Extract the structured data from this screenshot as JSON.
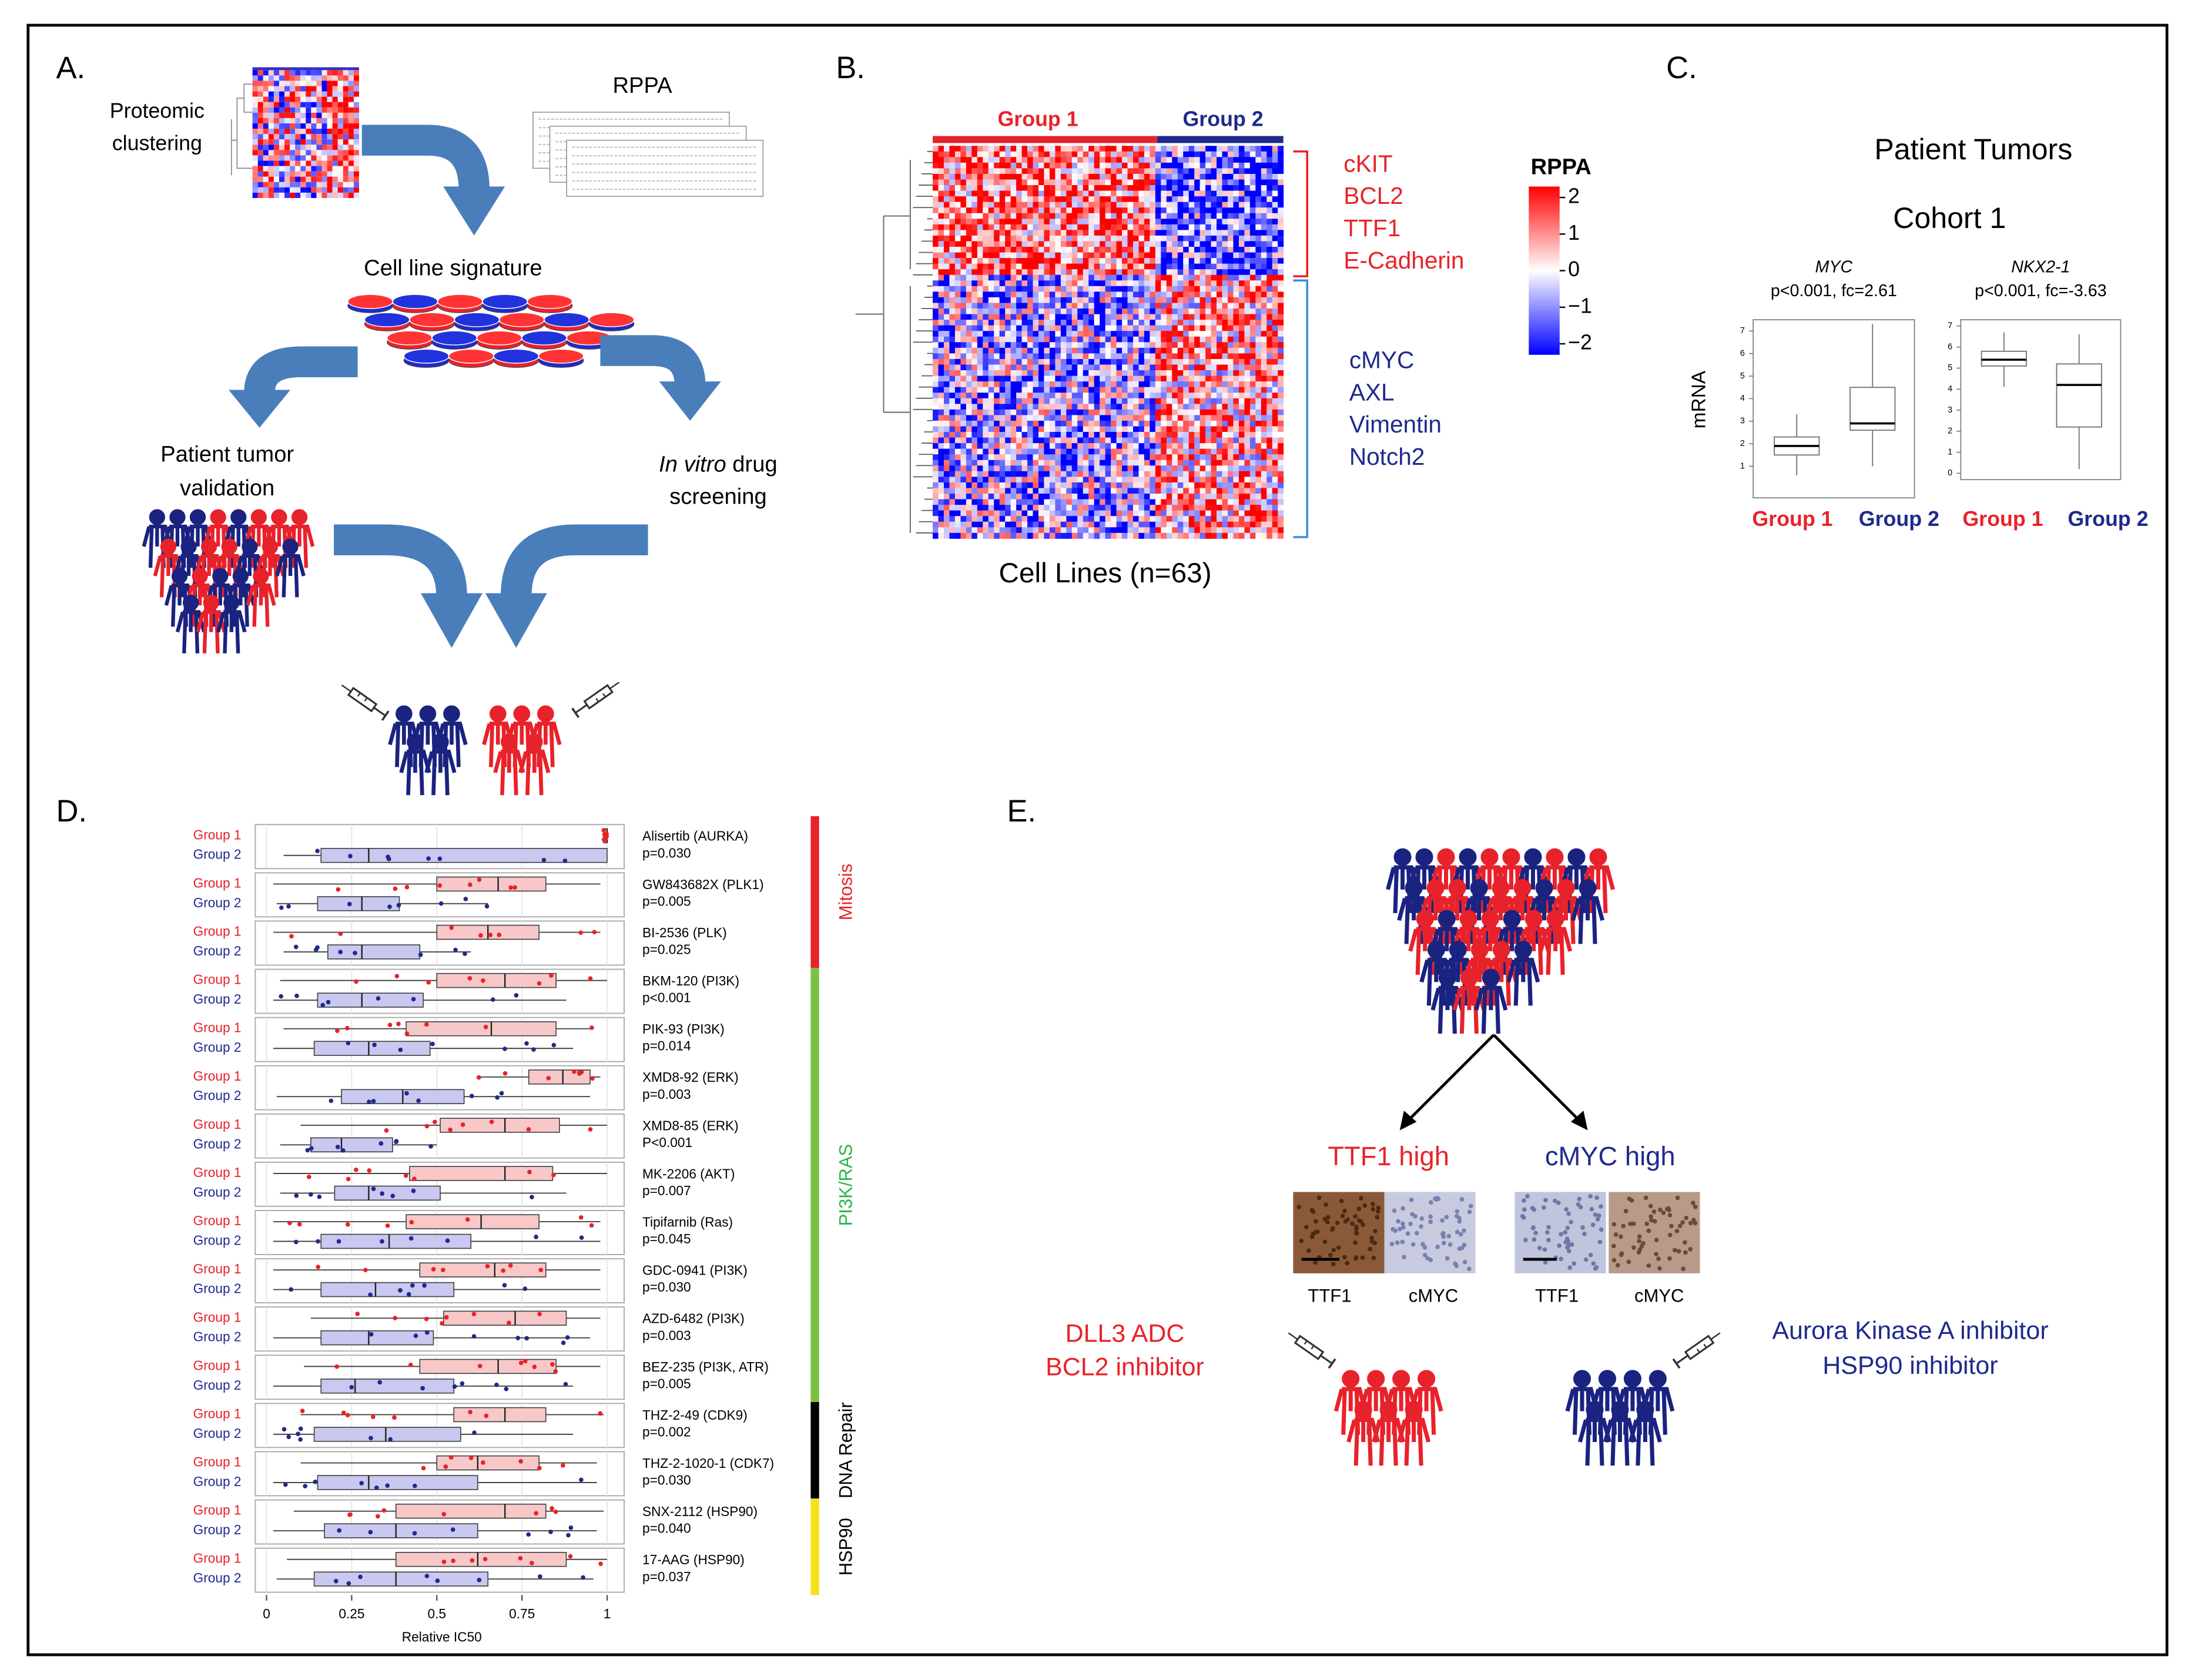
{
  "panel_a": {
    "label": "A.",
    "proteomic": [
      "Proteomic",
      "clustering"
    ],
    "rppa": "RPPA",
    "signature": "Cell line signature",
    "validation": [
      "Patient tumor",
      "validation"
    ],
    "screening": [
      "In vitro",
      " drug",
      "screening"
    ]
  },
  "panel_b": {
    "label": "B.",
    "groups": [
      {
        "name": "Group 1",
        "color": "#e8222a"
      },
      {
        "name": "Group 2",
        "color": "#1f2a8c"
      }
    ],
    "group1_markers": [
      "cKIT",
      "BCL2",
      "TTF1",
      "E-Cadherin"
    ],
    "group2_markers": [
      "cMYC",
      "AXL",
      "Vimentin",
      "Notch2"
    ],
    "legend_title": "RPPA",
    "clim": [
      -2.3,
      2.3
    ],
    "colorbar_ticks": [
      2,
      1,
      0,
      {
        "value": -1,
        "label": "−1"
      },
      {
        "value": -2,
        "label": "−2"
      }
    ],
    "xlabel": "Cell Lines (n=63)"
  },
  "panel_c": {
    "label": "C.",
    "title": "Patient Tumors",
    "subtitle": "Cohort 1",
    "ylabel": "mRNA",
    "categories": [
      "Group 1",
      "Group 2"
    ],
    "colors": [
      "#e8222a",
      "#1f2a8c"
    ],
    "charts": [
      {
        "type": "box",
        "title": "MYC",
        "stats_label": "p<0.001, fc=2.61",
        "ylim": [
          -0.4,
          7.5
        ],
        "yticks": [
          1,
          2,
          3,
          4,
          5,
          6,
          7
        ],
        "boxes": [
          [
            0.6,
            1.5,
            1.9,
            2.3,
            3.3
          ],
          [
            1,
            2.6,
            2.9,
            4.5,
            7.3
          ]
        ]
      },
      {
        "type": "box",
        "title": "NKX2-1",
        "stats_label": "p<0.001, fc=-3.63",
        "ylim": [
          -0.3,
          7.3
        ],
        "yticks": [
          0,
          1,
          2,
          3,
          4,
          5,
          6,
          7
        ],
        "boxes": [
          [
            4.1,
            5.1,
            5.4,
            5.8,
            6.7
          ],
          [
            0.2,
            2.2,
            4.2,
            5.2,
            6.6
          ]
        ]
      }
    ]
  },
  "panel_d": {
    "label": "D.",
    "type": "box",
    "xlabel": "Relative  IC50",
    "xlim": [
      -0.033,
      1.05
    ],
    "xticks": [
      0,
      0.25,
      0.5,
      0.75,
      1
    ],
    "series": [
      {
        "name": "Group 1",
        "color": "#e8222a",
        "fill": "#f8c8c8"
      },
      {
        "name": "Group 2",
        "color": "#1f2a8c",
        "fill": "#c8c8f0"
      }
    ],
    "pathways": [
      {
        "name": "Mitosis",
        "color": "#e8222a",
        "text_color": "#e8222a",
        "drugs": [
          {
            "name": "Alisertib (AURKA)",
            "p": "p=0.030",
            "stats": [
              [
                0.99,
                0.99,
                1,
                1,
                1
              ],
              [
                0.05,
                0.16,
                0.3,
                1,
                1
              ]
            ]
          },
          {
            "name": "GW843682X (PLK1)",
            "p": "p=0.005",
            "stats": [
              [
                0.02,
                0.5,
                0.68,
                0.82,
                0.98
              ],
              [
                0.03,
                0.15,
                0.28,
                0.39,
                0.65
              ]
            ]
          },
          {
            "name": " BI-2536 (PLK)",
            "p": "p=0.025",
            "stats": [
              [
                0.02,
                0.5,
                0.65,
                0.8,
                0.98
              ],
              [
                0.05,
                0.18,
                0.28,
                0.45,
                0.6
              ]
            ]
          }
        ]
      },
      {
        "name": "PI3K/RAS",
        "color": "#7ac143",
        "text_color": "#2bb34a",
        "drugs": [
          {
            "name": "BKM-120 (PI3K)",
            "p": "p<0.001",
            "stats": [
              [
                0.04,
                0.5,
                0.7,
                0.85,
                1
              ],
              [
                0.02,
                0.15,
                0.28,
                0.46,
                0.88
              ]
            ]
          },
          {
            "name": "PIK-93 (PI3K)",
            "p": "p=0.014",
            "stats": [
              [
                0.05,
                0.41,
                0.66,
                0.85,
                0.96
              ],
              [
                0.02,
                0.14,
                0.3,
                0.48,
                0.9
              ]
            ]
          },
          {
            "name": "XMD8-92 (ERK)",
            "p": "p=0.003",
            "stats": [
              [
                0.62,
                0.77,
                0.87,
                0.95,
                0.98
              ],
              [
                0.03,
                0.22,
                0.4,
                0.58,
                0.95
              ]
            ]
          },
          {
            "name": "XMD8-85 (ERK)",
            "p": "P<0.001",
            "stats": [
              [
                0.1,
                0.51,
                0.7,
                0.86,
                1
              ],
              [
                0.04,
                0.13,
                0.22,
                0.37,
                0.5
              ]
            ]
          },
          {
            "name": "MK-2206 (AKT)",
            "p": "p=0.007",
            "stats": [
              [
                0.02,
                0.42,
                0.7,
                0.84,
                1
              ],
              [
                0.04,
                0.2,
                0.3,
                0.51,
                0.88
              ]
            ]
          },
          {
            "name": "Tipifarnib (Ras)",
            "p": "p=0.045",
            "stats": [
              [
                0.02,
                0.41,
                0.63,
                0.8,
                0.98
              ],
              [
                0.02,
                0.16,
                0.36,
                0.6,
                0.98
              ]
            ]
          },
          {
            "name": "GDC-0941 (PI3K)",
            "p": "p=0.030",
            "stats": [
              [
                0.02,
                0.45,
                0.67,
                0.82,
                0.98
              ],
              [
                0.02,
                0.16,
                0.32,
                0.55,
                0.98
              ]
            ]
          },
          {
            "name": "AZD-6482 (PI3K)",
            "p": "p=0.003",
            "stats": [
              [
                0.13,
                0.52,
                0.73,
                0.88,
                0.98
              ],
              [
                0.02,
                0.16,
                0.3,
                0.49,
                0.95
              ]
            ]
          },
          {
            "name": "BEZ-235 (PI3K, ATR)",
            "p": "p=0.005",
            "stats": [
              [
                0.11,
                0.45,
                0.68,
                0.85,
                0.98
              ],
              [
                0.02,
                0.16,
                0.26,
                0.55,
                0.9
              ]
            ]
          }
        ]
      },
      {
        "name": "DNA Repair",
        "color": "#000000",
        "text_color": "#000000",
        "drugs": [
          {
            "name": "THZ-2-49 (CDK9)",
            "p": "p=0.002",
            "stats": [
              [
                0.1,
                0.55,
                0.7,
                0.82,
                0.99
              ],
              [
                0.02,
                0.14,
                0.35,
                0.57,
                0.9
              ]
            ]
          },
          {
            "name": "THZ-2-1020-1 (CDK7)",
            "p": "p=0.030",
            "stats": [
              [
                0.1,
                0.5,
                0.62,
                0.8,
                0.97
              ],
              [
                0.02,
                0.15,
                0.3,
                0.62,
                0.97
              ]
            ]
          }
        ]
      },
      {
        "name": "HSP90",
        "color": "#f5e11a",
        "text_color": "#000000",
        "drugs": [
          {
            "name": "SNX-2112 (HSP90)",
            "p": "p=0.040",
            "stats": [
              [
                0.08,
                0.38,
                0.7,
                0.82,
                0.99
              ],
              [
                0.02,
                0.17,
                0.38,
                0.62,
                0.97
              ]
            ]
          },
          {
            "name": "17-AAG (HSP90)",
            "p": "p=0.037",
            "stats": [
              [
                0.06,
                0.38,
                0.62,
                0.88,
                1
              ],
              [
                0.03,
                0.14,
                0.38,
                0.65,
                0.96
              ]
            ]
          }
        ]
      }
    ]
  },
  "panel_e": {
    "label": "E.",
    "ttf1_high": "TTF1 high",
    "cmyc_high": "cMYC high",
    "stain_labels": [
      "TTF1",
      "cMYC",
      "TTF1",
      "cMYC"
    ],
    "group1_treatments": [
      "DLL3 ADC",
      "BCL2 inhibitor"
    ],
    "group2_treatments": [
      "Aurora Kinase A inhibitor",
      "HSP90 inhibitor"
    ]
  }
}
